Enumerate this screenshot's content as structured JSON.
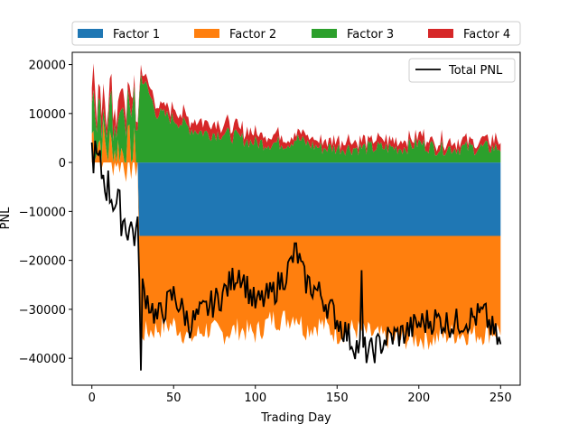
{
  "chart_data": {
    "type": "area",
    "stacked": true,
    "title": "",
    "xlabel": "Trading Day",
    "ylabel": "PNL",
    "xlim": [
      -12,
      262
    ],
    "ylim": [
      -45500,
      22500
    ],
    "xticks": [
      0,
      50,
      100,
      150,
      200,
      250
    ],
    "yticks": [
      -40000,
      -30000,
      -20000,
      -10000,
      0,
      10000,
      20000
    ],
    "ytick_labels": [
      "−40000",
      "−30000",
      "−20000",
      "−10000",
      "0",
      "10000",
      "20000"
    ],
    "grid": false,
    "legend_placement": "above-plot",
    "line_legend_placement": "top-right",
    "x_breakpoints": [
      0,
      10,
      20,
      28,
      30,
      40,
      50,
      60,
      70,
      80,
      90,
      100,
      110,
      120,
      125,
      130,
      140,
      150,
      160,
      170,
      180,
      190,
      200,
      210,
      220,
      230,
      240,
      250
    ],
    "series": [
      {
        "name": "Factor 1",
        "color": "#1f77b4",
        "values": [
          0,
          0,
          0,
          0,
          0,
          0,
          0,
          0,
          0,
          0,
          0,
          0,
          0,
          0,
          0,
          -15000,
          -15000,
          -15000,
          -15000,
          -15000,
          -15000,
          -15000,
          -15000,
          -15000,
          -15000,
          -15000,
          -15000,
          -15000
        ]
      },
      {
        "name": "Factor 2",
        "color": "#ff7f0e",
        "values": [
          6000,
          3000,
          2000,
          1000,
          -20000,
          -19000,
          -18000,
          -21000,
          -19000,
          -20000,
          -19000,
          -20000,
          -17000,
          -17000,
          -16000,
          -19000,
          -18000,
          -20000,
          -19000,
          -20000,
          -21000,
          -21000,
          -21000,
          -21000,
          -20000,
          -20000,
          -20000,
          -19000
        ]
      },
      {
        "name": "Factor 3",
        "color": "#2ca02c",
        "values": [
          5000,
          6000,
          7000,
          8000,
          18000,
          10000,
          9000,
          7000,
          6000,
          6000,
          5000,
          4000,
          4000,
          4000,
          5000,
          4000,
          3000,
          3000,
          3000,
          3000,
          3000,
          3000,
          4000,
          3000,
          3000,
          3000,
          3000,
          3000
        ]
      },
      {
        "name": "Factor 4",
        "color": "#d62728",
        "values": [
          4000,
          3000,
          3000,
          2000,
          2000,
          2000,
          2000,
          2000,
          2000,
          2000,
          2000,
          2000,
          2000,
          1500,
          1500,
          1500,
          1500,
          1500,
          1500,
          1500,
          1500,
          1500,
          1500,
          1500,
          1500,
          1500,
          1500,
          1500
        ]
      },
      {
        "name": "Total PNL",
        "color": "#000000",
        "type": "line",
        "values": [
          2500,
          -5000,
          -12000,
          -15000,
          -25000,
          -32000,
          -27000,
          -33000,
          -30000,
          -27000,
          -22000,
          -29000,
          -27000,
          -22000,
          -18000,
          -24000,
          -27000,
          -32000,
          -37000,
          -39000,
          -36000,
          -35000,
          -33000,
          -32000,
          -33000,
          -32000,
          -31000,
          -37500
        ]
      }
    ]
  }
}
